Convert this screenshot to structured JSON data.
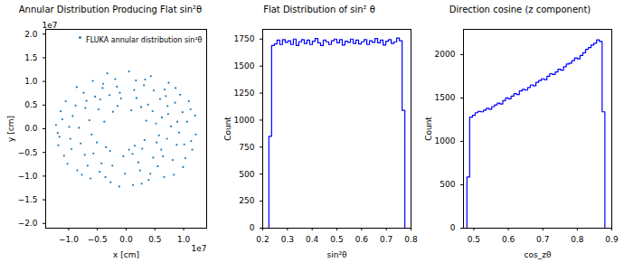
{
  "chart_data": [
    {
      "type": "scatter",
      "title": "Annular Distribution Producing Flat sin²θ",
      "x_label": "x [cm]",
      "y_label": "y [cm]",
      "x_offset_label": "1e7",
      "y_offset_label": "1e7",
      "legend": "upper right",
      "marker": "point",
      "series": [
        {
          "name": "FLUKA annular distribution sin²θ",
          "color": "#1f77b4",
          "x": [
            0.52,
            0.88,
            1.12,
            -0.45,
            -0.93,
            -1.18,
            0.21,
            -0.36,
            0.67,
            0.05,
            -0.72,
            1.03,
            0.39,
            -0.15,
            0.78,
            -0.58,
            -1.05,
            0.94,
            -0.28,
            0.31,
            -0.85,
            0.61,
            1.21,
            -1.22,
            0.12,
            -0.05,
            0.46,
            -0.64,
            0.83,
            -0.97,
            0.18,
            -0.41,
            0.72,
            1.06,
            -0.19,
            0.55,
            -0.74,
            0.28,
            -1.08,
            0.98,
            -0.51,
            0.09,
            -0.33,
            0.43,
            -0.88,
            1.15,
            0.66,
            -0.62,
            -0.02,
            0.35,
            -0.38,
            0.85,
            -1.14,
            0.24,
            -0.79,
            0.59,
            -0.24,
            0.71,
            -0.48,
            0.14,
            -1.02,
            0.92,
            -0.67,
            0.47,
            -0.12,
            1.2,
            -0.86,
            0.32,
            -0.57,
            0.74,
            -0.29,
            0.62,
            -0.99,
            0.05,
            0.38,
            -0.71,
            1.01,
            -0.43,
            0.17,
            -0.16,
            0.89,
            -0.82,
            0.53,
            -0.35,
            0.26,
            1.09,
            -1.16,
            0.81,
            -0.54,
            0.42,
            -0.23,
            0.69,
            -0.77,
            0.11,
            -0.6,
            0.99,
            -1.11,
            0.33,
            0.57,
            -0.09,
            -0.46,
            0.15,
            -0.95,
            0.73,
            -0.27,
            1.13,
            -0.69,
            0.48,
            -0.4,
            0.27,
            -1.19,
            0.86,
            -0.11,
            0.64
          ],
          "values": [
            0.11,
            -0.34,
            0.41,
            0.62,
            0.27,
            -0.35,
            -0.71,
            -1.02,
            0.83,
            1.21,
            -0.55,
            -0.62,
            -1.08,
            0.48,
            0.05,
            1.01,
            0.58,
            0.72,
            -0.47,
            0.92,
            -0.88,
            -0.44,
            -0.12,
            0.08,
            -1.19,
            -0.58,
            0.37,
            0.18,
            -0.97,
            -0.21,
            0.65,
            0.86,
            0.48,
            0.15,
            1.05,
            -0.79,
            0.76,
            -0.42,
            -0.57,
            0.35,
            -0.29,
            0.39,
            1.17,
            1.11,
            0.49,
            -0.44,
            -1.02,
            -1.05,
            -0.95,
            0.17,
            0.15,
            0.55,
            0.37,
            -0.88,
            -0.31,
            0.63,
            -0.78,
            -0.21,
            0.41,
            0.82,
            -0.74,
            -0.08,
            -0.78,
            -0.61,
            -1.22,
            0.28,
            0.88,
            -0.24,
            -0.52,
            0.97,
            0.71,
            0.24,
            0.04,
            -0.44,
            0.51,
            0.44,
            -0.33,
            -0.73,
            1.02,
            0.89,
            0.15,
            0.02,
            -0.29,
            -0.39,
            0.46,
            0.58,
            -0.17,
            -0.66,
            0.68,
            -0.95,
            0.36,
            0.69,
            -0.97,
            -0.53,
            -0.12,
            -0.81,
            0.2,
            1.04,
            -0.14,
            0.64,
            -0.91,
            -0.36,
            -0.43,
            0.31,
            -1.13,
            -0.26,
            0.59,
            0.81,
            0.95,
            -1.16,
            -0.09,
            0.86,
            0.76,
            -0.58
          ]
        }
      ],
      "xlim": [
        -1.4,
        1.4
      ],
      "ylim": [
        -2.1,
        2.1
      ],
      "xticks": [
        {
          "value": -1,
          "label": "−1.0"
        },
        {
          "value": -0.5,
          "label": "−0.5"
        },
        {
          "value": 0,
          "label": "0.0"
        },
        {
          "value": 0.5,
          "label": "0.5"
        },
        {
          "value": 1,
          "label": "1.0"
        }
      ],
      "yticks": [
        {
          "value": -2,
          "label": "−2.0"
        },
        {
          "value": -1.5,
          "label": "−1.5"
        },
        {
          "value": -1,
          "label": "−1.0"
        },
        {
          "value": -0.5,
          "label": "−0.5"
        },
        {
          "value": 0,
          "label": "0.0"
        },
        {
          "value": 0.5,
          "label": "0.5"
        },
        {
          "value": 1,
          "label": "1.0"
        },
        {
          "value": 1.5,
          "label": "1.5"
        },
        {
          "value": 2,
          "label": "2.0"
        }
      ],
      "grid": false
    },
    {
      "type": "histogram",
      "title": "Flat Distribution of sin² θ",
      "x_label": "sin²θ",
      "y_label": "Count",
      "color": "#0000ff",
      "bins": [
        0.225,
        0.236,
        0.247,
        0.258,
        0.269,
        0.28,
        0.291,
        0.302,
        0.313,
        0.324,
        0.335,
        0.346,
        0.357,
        0.368,
        0.379,
        0.39,
        0.401,
        0.412,
        0.423,
        0.434,
        0.445,
        0.456,
        0.467,
        0.478,
        0.489,
        0.5,
        0.511,
        0.522,
        0.533,
        0.544,
        0.555,
        0.566,
        0.577,
        0.588,
        0.599,
        0.61,
        0.621,
        0.632,
        0.643,
        0.654,
        0.665,
        0.676,
        0.687,
        0.698,
        0.709,
        0.72,
        0.731,
        0.742,
        0.753,
        0.764,
        0.775
      ],
      "values": [
        850,
        1690,
        1705,
        1740,
        1700,
        1745,
        1720,
        1735,
        1700,
        1750,
        1690,
        1725,
        1745,
        1710,
        1740,
        1700,
        1730,
        1755,
        1715,
        1690,
        1740,
        1725,
        1700,
        1735,
        1750,
        1715,
        1745,
        1695,
        1730,
        1720,
        1750,
        1710,
        1740,
        1705,
        1725,
        1745,
        1700,
        1735,
        1720,
        1755,
        1715,
        1740,
        1695,
        1730,
        1745,
        1710,
        1725,
        1760,
        1735,
        1090
      ],
      "xlim": [
        0.2,
        0.8
      ],
      "ylim": [
        0,
        1840
      ],
      "xticks": [
        0.2,
        0.3,
        0.4,
        0.5,
        0.6,
        0.7,
        0.8
      ],
      "yticks": [
        0,
        250,
        500,
        750,
        1000,
        1250,
        1500,
        1750
      ],
      "grid": false
    },
    {
      "type": "histogram",
      "title": "Direction cosine (z component)",
      "x_label": "cos_zθ",
      "y_label": "Count",
      "color": "#0000ff",
      "bins": [
        0.48,
        0.488,
        0.496,
        0.504,
        0.512,
        0.52,
        0.528,
        0.536,
        0.544,
        0.552,
        0.56,
        0.568,
        0.576,
        0.584,
        0.592,
        0.6,
        0.608,
        0.616,
        0.624,
        0.632,
        0.64,
        0.648,
        0.656,
        0.664,
        0.672,
        0.68,
        0.688,
        0.696,
        0.704,
        0.712,
        0.72,
        0.728,
        0.736,
        0.744,
        0.752,
        0.76,
        0.768,
        0.776,
        0.784,
        0.792,
        0.8,
        0.808,
        0.816,
        0.824,
        0.832,
        0.84,
        0.848,
        0.856,
        0.864,
        0.872,
        0.88
      ],
      "values": [
        590,
        1280,
        1300,
        1330,
        1345,
        1340,
        1360,
        1380,
        1370,
        1400,
        1420,
        1440,
        1430,
        1470,
        1500,
        1490,
        1520,
        1550,
        1540,
        1580,
        1600,
        1590,
        1620,
        1650,
        1640,
        1680,
        1700,
        1720,
        1710,
        1750,
        1780,
        1770,
        1800,
        1830,
        1820,
        1860,
        1890,
        1900,
        1930,
        1960,
        1950,
        1990,
        2020,
        2060,
        2080,
        2110,
        2130,
        2170,
        2150,
        1340
      ],
      "xlim": [
        0.47,
        0.9
      ],
      "ylim": [
        0,
        2290
      ],
      "xticks": [
        0.5,
        0.6,
        0.7,
        0.8,
        0.9
      ],
      "yticks": [
        0,
        500,
        1000,
        1500,
        2000
      ],
      "grid": false
    }
  ]
}
